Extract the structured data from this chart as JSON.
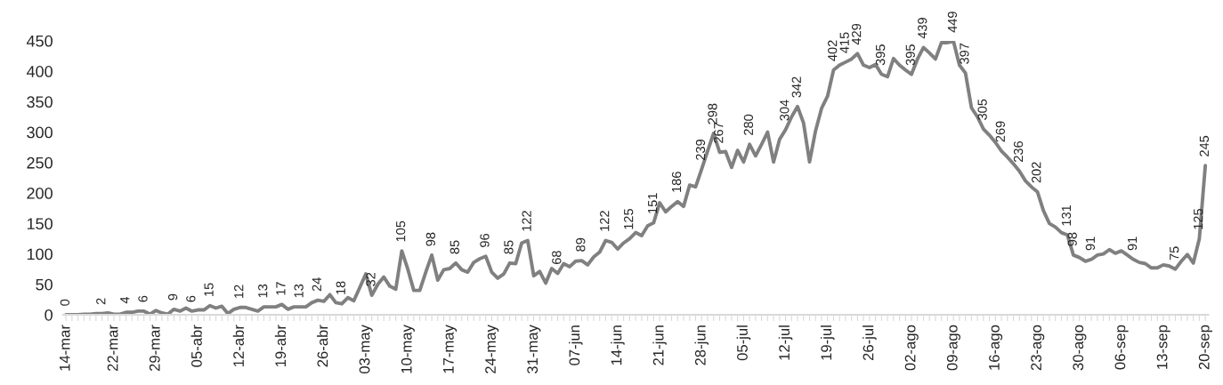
{
  "chart_data": {
    "type": "line",
    "categories": [
      "14-mar",
      null,
      null,
      null,
      null,
      null,
      null,
      null,
      "22-mar",
      null,
      null,
      null,
      null,
      null,
      null,
      "29-mar",
      null,
      null,
      null,
      null,
      null,
      null,
      "05-abr",
      null,
      null,
      null,
      null,
      null,
      null,
      "12-abr",
      null,
      null,
      null,
      null,
      null,
      null,
      "19-abr",
      null,
      null,
      null,
      null,
      null,
      null,
      "26-abr",
      null,
      null,
      null,
      null,
      null,
      null,
      "03-may",
      null,
      null,
      null,
      null,
      null,
      null,
      "10-may",
      null,
      null,
      null,
      null,
      null,
      null,
      "17-may",
      null,
      null,
      null,
      null,
      null,
      null,
      "24-may",
      null,
      null,
      null,
      null,
      null,
      null,
      "31-may",
      null,
      null,
      null,
      null,
      null,
      null,
      "07-jun",
      null,
      null,
      null,
      null,
      null,
      null,
      "14-jun",
      null,
      null,
      null,
      null,
      null,
      null,
      "21-jun",
      null,
      null,
      null,
      null,
      null,
      null,
      "28-jun",
      null,
      null,
      null,
      null,
      null,
      null,
      "05-jul",
      null,
      null,
      null,
      null,
      null,
      null,
      "12-jul",
      null,
      null,
      null,
      null,
      null,
      null,
      "19-jul",
      null,
      null,
      null,
      null,
      null,
      null,
      "26-jul",
      null,
      null,
      null,
      null,
      null,
      null,
      "02-ago",
      null,
      null,
      null,
      null,
      null,
      null,
      "09-ago",
      null,
      null,
      null,
      null,
      null,
      null,
      "16-ago",
      null,
      null,
      null,
      null,
      null,
      null,
      "23-ago",
      null,
      null,
      null,
      null,
      null,
      null,
      "30-ago",
      null,
      null,
      null,
      null,
      null,
      null,
      "06-sep",
      null,
      null,
      null,
      null,
      null,
      null,
      "13-sep",
      null,
      null,
      null,
      null,
      null,
      null,
      "20-sep"
    ],
    "series": [
      {
        "color": "#808080",
        "values": [
          0,
          0,
          0,
          1,
          1,
          2,
          2,
          3,
          1,
          1,
          4,
          4,
          6,
          6,
          1,
          7,
          3,
          1,
          9,
          6,
          11,
          6,
          8,
          8,
          15,
          11,
          14,
          2,
          9,
          12,
          12,
          9,
          6,
          13,
          13,
          13,
          17,
          9,
          13,
          13,
          13,
          20,
          24,
          22,
          33,
          20,
          18,
          28,
          23,
          45,
          67,
          32,
          50,
          62,
          47,
          42,
          105,
          75,
          40,
          40,
          70,
          98,
          57,
          74,
          76,
          85,
          74,
          70,
          86,
          92,
          96,
          70,
          60,
          67,
          85,
          84,
          118,
          122,
          64,
          71,
          52,
          76,
          68,
          84,
          79,
          88,
          89,
          82,
          95,
          103,
          122,
          119,
          108,
          118,
          125,
          135,
          130,
          146,
          151,
          184,
          169,
          178,
          186,
          178,
          213,
          210,
          239,
          269,
          298,
          267,
          268,
          242,
          270,
          251,
          280,
          261,
          280,
          300,
          251,
          288,
          304,
          325,
          342,
          315,
          251,
          302,
          339,
          359,
          402,
          410,
          415,
          420,
          429,
          410,
          406,
          411,
          395,
          391,
          421,
          410,
          402,
          395,
          420,
          439,
          430,
          420,
          447,
          447,
          449,
          410,
          397,
          340,
          325,
          305,
          295,
          283,
          269,
          259,
          248,
          236,
          220,
          210,
          202,
          171,
          150,
          144,
          135,
          131,
          98,
          94,
          88,
          91,
          98,
          100,
          107,
          101,
          105,
          98,
          91,
          86,
          84,
          77,
          77,
          82,
          80,
          75,
          88,
          99,
          85,
          125,
          245
        ],
        "value_labels": [
          "0",
          null,
          null,
          null,
          null,
          null,
          "2",
          null,
          null,
          null,
          "4",
          null,
          null,
          "6",
          null,
          null,
          null,
          null,
          "9",
          null,
          null,
          "6",
          null,
          null,
          "15",
          null,
          null,
          null,
          null,
          "12",
          null,
          null,
          null,
          "13",
          null,
          null,
          "17",
          null,
          null,
          "13",
          null,
          null,
          "24",
          null,
          null,
          null,
          "18",
          null,
          null,
          null,
          null,
          "32",
          null,
          null,
          null,
          null,
          "105",
          null,
          null,
          null,
          null,
          "98",
          null,
          null,
          null,
          "85",
          null,
          null,
          null,
          null,
          "96",
          null,
          null,
          null,
          "85",
          null,
          null,
          "122",
          null,
          null,
          null,
          null,
          "68",
          null,
          null,
          null,
          "89",
          null,
          null,
          null,
          "122",
          null,
          null,
          null,
          "125",
          null,
          null,
          null,
          "151",
          null,
          null,
          null,
          "186",
          null,
          null,
          null,
          "239",
          null,
          "298",
          "267",
          null,
          null,
          null,
          null,
          "280",
          null,
          null,
          null,
          null,
          null,
          "304",
          null,
          "342",
          null,
          null,
          null,
          null,
          null,
          "402",
          null,
          "415",
          null,
          "429",
          null,
          null,
          null,
          "395",
          null,
          null,
          null,
          null,
          "395",
          null,
          "439",
          null,
          null,
          null,
          null,
          "449",
          null,
          "397",
          null,
          null,
          "305",
          null,
          null,
          "269",
          null,
          null,
          "236",
          null,
          null,
          "202",
          null,
          null,
          null,
          null,
          "131",
          "98",
          null,
          null,
          "91",
          null,
          null,
          null,
          null,
          null,
          null,
          "91",
          null,
          null,
          null,
          null,
          null,
          null,
          "75",
          null,
          null,
          null,
          "125",
          "245"
        ]
      }
    ],
    "ylim": [
      0,
      450
    ],
    "yticks": [
      0,
      50,
      100,
      150,
      200,
      250,
      300,
      350,
      400,
      450
    ],
    "grid": false,
    "legend": false,
    "marker": "none",
    "line_style": "solid"
  }
}
